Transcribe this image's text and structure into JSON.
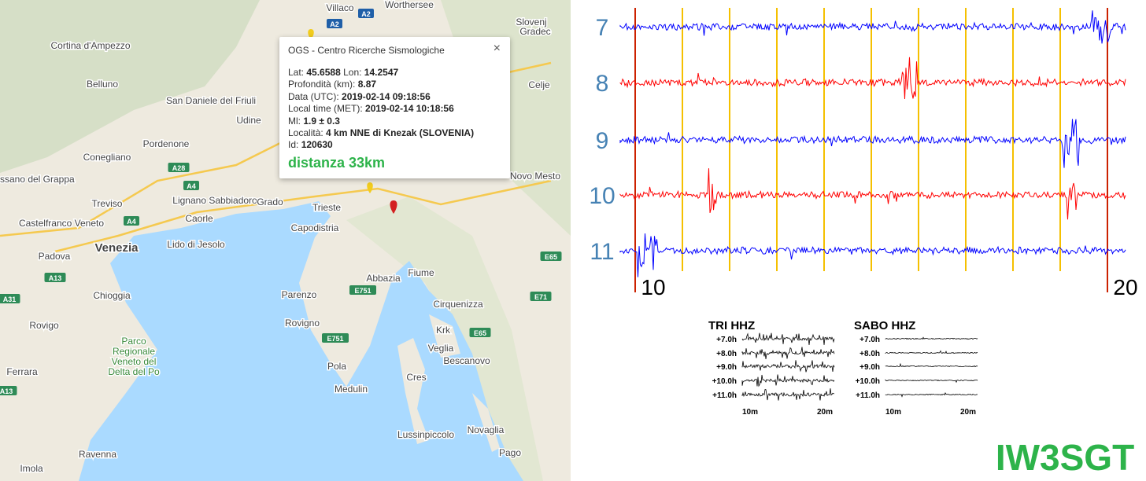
{
  "map": {
    "labels": [
      "Villaco",
      "Worthersee",
      "Cortina d'Ampezzo",
      "Belluno",
      "San Daniele del Friuli",
      "Udine",
      "Pordenone",
      "Conegliano",
      "Bassano del Grappa",
      "Treviso",
      "Castelfranco Veneto",
      "Padova",
      "Venezia",
      "Lignano Sabbiadoro",
      "Caorle",
      "Grado",
      "Lido di Jesolo",
      "Trieste",
      "Capodistria",
      "Chioggia",
      "Rovigo",
      "Parco",
      "Regionale",
      "Veneto del",
      "Delta del Po",
      "Ferrara",
      "Imola",
      "Ravenna",
      "Parenzo",
      "Rovigno",
      "Pola",
      "Medulin",
      "Abbazia",
      "Fiume",
      "Cirquenizza",
      "Krk",
      "Veglia",
      "Bescanovo",
      "Cres",
      "Lussinpiccolo",
      "Novaglia",
      "Pago",
      "Celje",
      "Novo Mesto",
      "Slovenj",
      "Gradec"
    ],
    "road_shields": [
      "A2",
      "A2",
      "A28",
      "A4",
      "A4",
      "A13",
      "A31",
      "A13",
      "E751",
      "E751",
      "E65",
      "E65",
      "E71"
    ],
    "popup": {
      "title": "OGS - Centro Ricerche Sismologiche",
      "close": "×",
      "lines": [
        [
          {
            "label": "Lat:",
            "value": "45.6588"
          },
          {
            "label": "Lon:",
            "value": "14.2547"
          }
        ],
        [
          {
            "label": "Profondità (km):",
            "value": "8.87"
          }
        ],
        [
          {
            "label": "Data (UTC):",
            "value": "2019-02-14 09:18:56"
          }
        ],
        [
          {
            "label": "Local time (MET):",
            "value": "2019-02-14 10:18:56"
          }
        ],
        [
          {
            "label": "Ml:",
            "value": "1.9 ± 0.3"
          }
        ],
        [
          {
            "label": "Località:",
            "value": "4 km NNE di Knezak (SLOVENIA)"
          }
        ],
        [
          {
            "label": "Id:",
            "value": "120630"
          }
        ]
      ],
      "distance": "distanza 33km"
    }
  },
  "seismogram": {
    "rows": [
      {
        "label": "7",
        "color": "#0000ff"
      },
      {
        "label": "8",
        "color": "#ff0000"
      },
      {
        "label": "9",
        "color": "#0000ff"
      },
      {
        "label": "10",
        "color": "#ff0000"
      },
      {
        "label": "11",
        "color": "#0000ff"
      }
    ],
    "x_labels": [
      "10",
      "20"
    ]
  },
  "helicorders": [
    {
      "title": "TRI HHZ",
      "rows": [
        "+7.0h",
        "+8.0h",
        "+9.0h",
        "+10.0h",
        "+11.0h"
      ],
      "x_labels": [
        "10m",
        "20m"
      ]
    },
    {
      "title": "SABO HHZ",
      "rows": [
        "+7.0h",
        "+8.0h",
        "+9.0h",
        "+10.0h",
        "+11.0h"
      ],
      "x_labels": [
        "10m",
        "20m"
      ]
    }
  ],
  "callsign": "IW3SGT"
}
